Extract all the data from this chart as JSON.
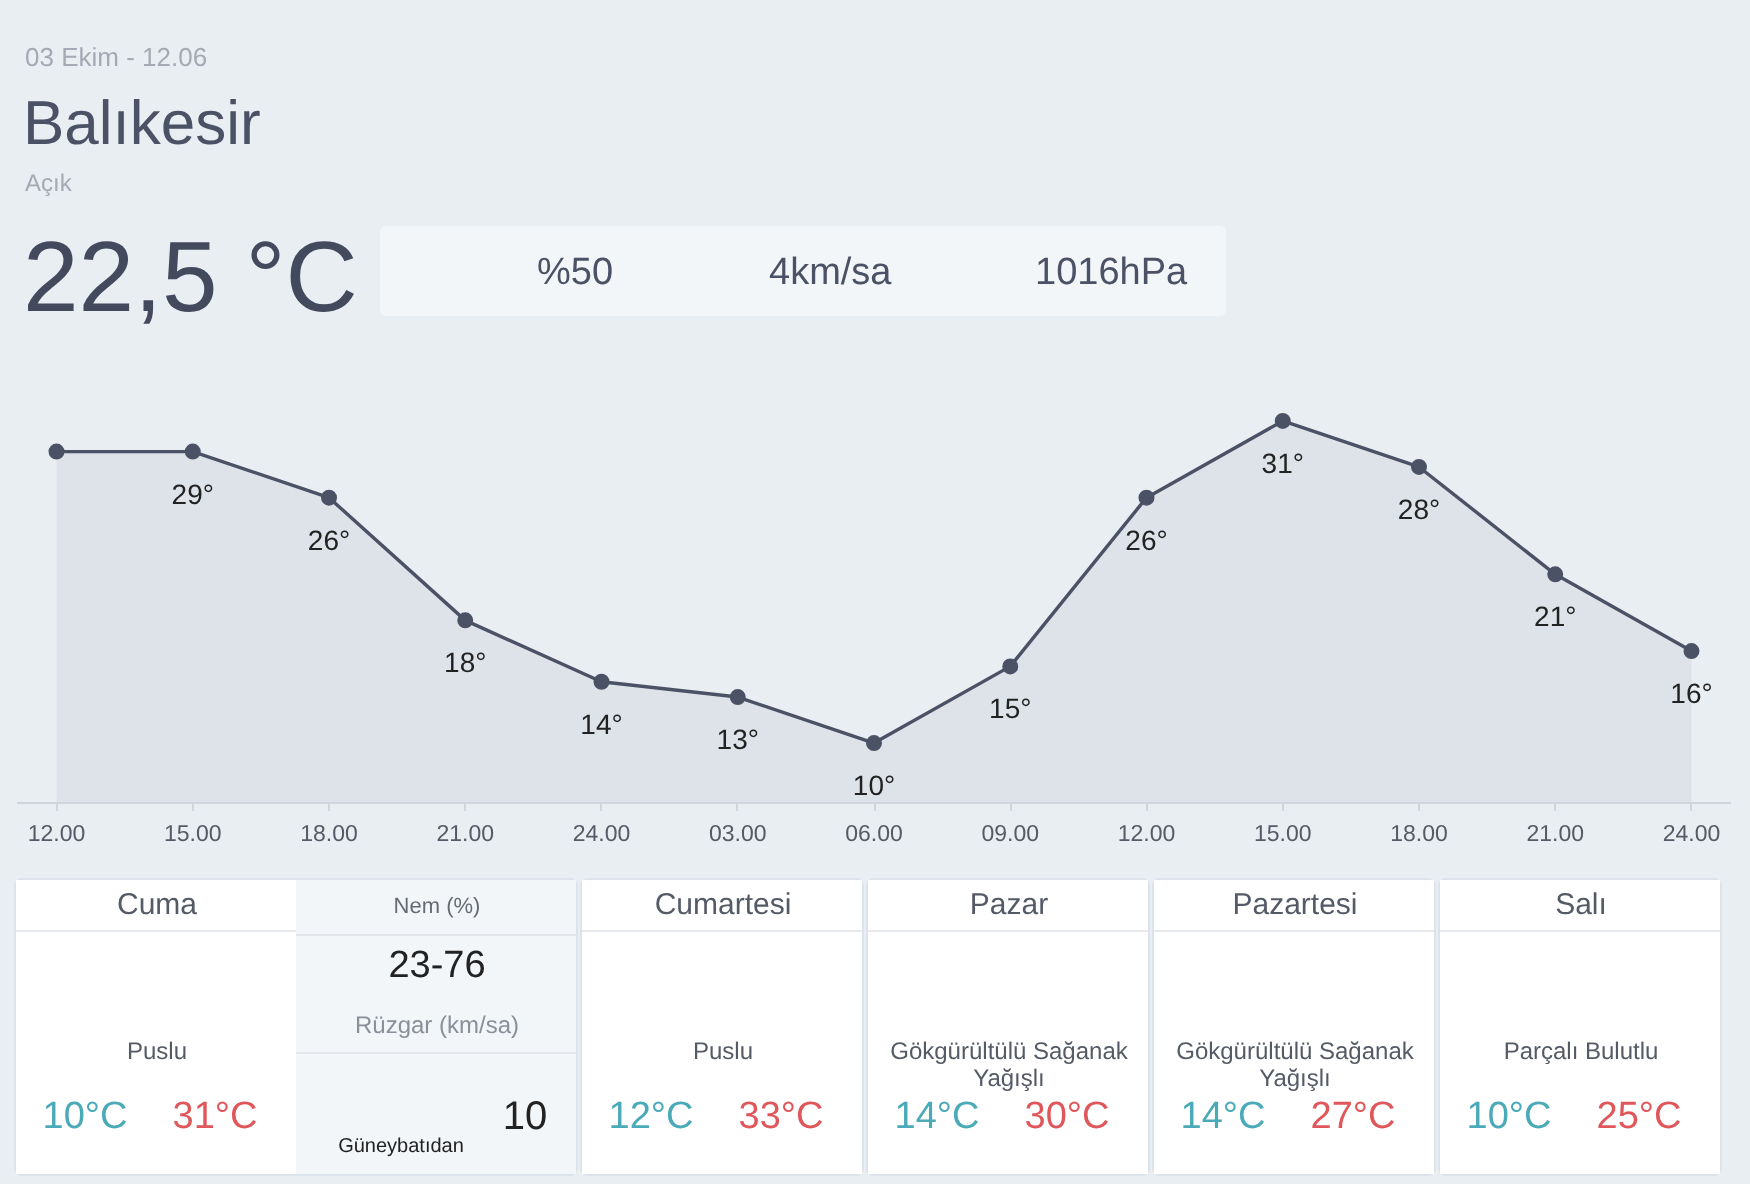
{
  "chart_data": [
    {
      "type": "other",
      "title": "Balıkesir",
      "subtitle": "03 Ekim - 12.06",
      "annotations": [
        "Açık",
        "22,5 °C",
        "%50",
        "4km/sa",
        "1016hPa"
      ]
    },
    {
      "type": "area",
      "categories": [
        "12.00",
        "15.00",
        "18.00",
        "21.00",
        "24.00",
        "03.00",
        "06.00",
        "09.00",
        "12.00",
        "15.00",
        "18.00",
        "21.00",
        "24.00"
      ],
      "values": [
        29,
        29,
        26,
        18,
        14,
        13,
        10,
        15,
        26,
        31,
        28,
        21,
        16
      ],
      "value_labels": [
        null,
        "29°",
        "26°",
        "18°",
        "14°",
        "13°",
        "10°",
        "15°",
        "26°",
        "31°",
        "28°",
        "21°",
        "16°"
      ],
      "color": "#4b5266",
      "marker": "circle",
      "tick_labels": "x"
    },
    {
      "type": "other",
      "title": "Cuma",
      "annotations": [
        "Puslu",
        "10°C",
        "31°C",
        "Nem (%)",
        "23-76",
        "Rüzgar (km/sa)",
        "10",
        "Güneybatıdan"
      ]
    },
    {
      "type": "other",
      "title": "Cumartesi",
      "annotations": [
        "Puslu",
        "12°C",
        "33°C"
      ]
    },
    {
      "type": "other",
      "title": "Pazar",
      "annotations": [
        "Gökgürültülü Sağanak Yağışlı",
        "14°C",
        "30°C"
      ]
    },
    {
      "type": "other",
      "title": "Pazartesi",
      "annotations": [
        "Gökgürültülü Sağanak Yağışlı",
        "14°C",
        "27°C"
      ]
    },
    {
      "type": "other",
      "title": "Salı",
      "annotations": [
        "Parçalı Bulutlu",
        "10°C",
        "25°C"
      ]
    }
  ]
}
